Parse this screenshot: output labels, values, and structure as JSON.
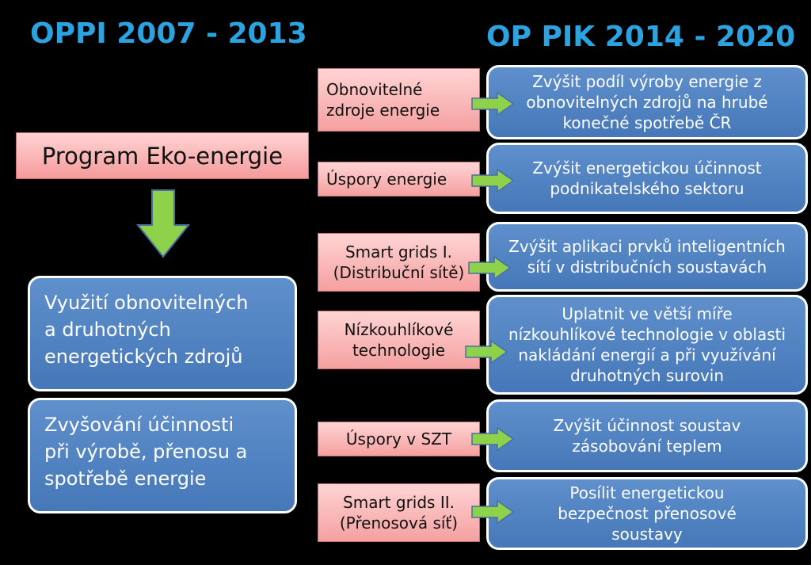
{
  "titles": {
    "left": "OPPI 2007 - 2013",
    "right": "OP PIK 2014 - 2020"
  },
  "program": {
    "label": "Program Eko-energie"
  },
  "left_boxes": [
    {
      "lines": [
        "Využití obnovitelných",
        "a druhotných",
        "energetických zdrojů"
      ]
    },
    {
      "lines": [
        "Zvyšování účinnosti",
        "při výrobě, přenosu a",
        "spotřebě energie"
      ]
    }
  ],
  "rows": [
    {
      "category": [
        "Obnovitelné",
        "zdroje energie"
      ],
      "goal": [
        "Zvýšit podíl výroby energie z",
        "obnovitelných zdrojů na hrubé",
        "konečné spotřebě ČR"
      ]
    },
    {
      "category": [
        "Úspory energie"
      ],
      "goal": [
        "Zvýšit energetickou účinnost",
        "podnikatelského sektoru"
      ]
    },
    {
      "category": [
        "Smart grids I.",
        "(Distribuční sítě)"
      ],
      "goal": [
        "Zvýšit aplikaci prvků inteligentních",
        "sítí v distribučních soustavách"
      ]
    },
    {
      "category": [
        "Nízkouhlíkové",
        "technologie"
      ],
      "goal": [
        "Uplatnit ve větší míře",
        "nízkouhlíkové technologie v oblasti",
        "nakládání energií a při využívání",
        "druhotných surovin"
      ]
    },
    {
      "category": [
        "Úspory v SZT"
      ],
      "goal": [
        "Zvýšit účinnost soustav",
        "zásobování teplem"
      ]
    },
    {
      "category": [
        "Smart grids II.",
        "(Přenosová síť)"
      ],
      "goal": [
        "Posílit energetickou",
        "bezpečnost přenosové",
        "soustavy"
      ]
    }
  ],
  "colors": {
    "title": "#2ba3e0",
    "pink": "#f5a0a0",
    "blue": "#4f81bd",
    "arrow_green": "#8ed14a"
  }
}
